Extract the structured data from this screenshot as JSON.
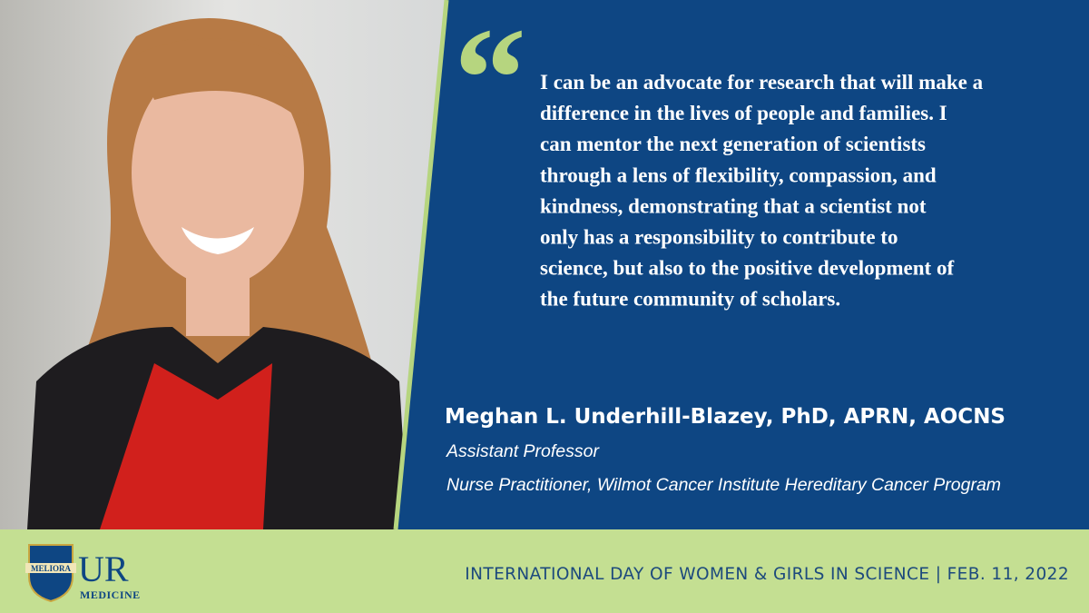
{
  "quote": {
    "lines": [
      "I can be an advocate for research that will make a",
      "difference in the lives of people and families. I",
      "can mentor the next generation of scientists",
      "through a lens of flexibility, compassion, and",
      "kindness, demonstrating that a scientist not",
      "only has a responsibility to contribute to",
      "science, but also to the positive development of",
      "the future community of scholars."
    ]
  },
  "person": {
    "name": "Meghan L. Underhill-Blazey, PhD, APRN, AOCNS",
    "titles": [
      "Assistant Professor",
      "Nurse Practitioner, Wilmot Cancer Institute Hereditary Cancer Program"
    ]
  },
  "footer": {
    "logo": {
      "motto": "MELIORA",
      "letters": "UR",
      "word": "MEDICINE"
    },
    "event": "INTERNATIONAL DAY OF WOMEN & GIRLS IN SCIENCE | FEB. 11, 2022"
  }
}
